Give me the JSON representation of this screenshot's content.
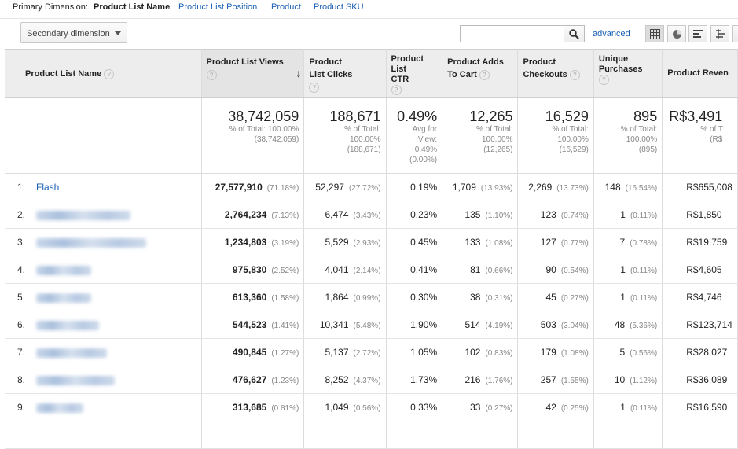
{
  "primary_dimension": {
    "label": "Primary Dimension:",
    "active": "Product List Name",
    "options": [
      "Product List Position",
      "Product",
      "Product SKU"
    ]
  },
  "controls": {
    "secondary_dimension": "Secondary dimension",
    "search_value": "",
    "advanced": "advanced"
  },
  "table": {
    "columns": [
      {
        "label": "Product List Name"
      },
      {
        "label": "Product List Views"
      },
      {
        "label": "Product List Clicks"
      },
      {
        "label": "Product List CTR"
      },
      {
        "label": "Product Adds To Cart"
      },
      {
        "label": "Product Checkouts"
      },
      {
        "label": "Unique Purchases"
      },
      {
        "label": "Product Reven"
      }
    ],
    "totals": [
      {
        "big": "38,742,059",
        "sub": [
          "% of Total: 100.00%",
          "(38,742,059)"
        ]
      },
      {
        "big": "188,671",
        "sub": [
          "% of Total:",
          "100.00%",
          "(188,671)"
        ]
      },
      {
        "big": "0.49%",
        "sub": [
          "Avg for",
          "View:",
          "0.49%",
          "(0.00%)"
        ]
      },
      {
        "big": "12,265",
        "sub": [
          "% of Total:",
          "100.00%",
          "(12,265)"
        ]
      },
      {
        "big": "16,529",
        "sub": [
          "% of Total:",
          "100.00%",
          "(16,529)"
        ]
      },
      {
        "big": "895",
        "sub": [
          "% of Total:",
          "100.00%",
          "(895)"
        ]
      },
      {
        "big": "R$3,491",
        "sub": [
          "% of T",
          "(R$"
        ]
      }
    ],
    "rows": [
      {
        "idx": "1.",
        "name": "Flash",
        "views": "27,577,910",
        "views_pct": "(71.18%)",
        "clicks": "52,297",
        "clicks_pct": "(27.72%)",
        "ctr": "0.19%",
        "adds": "1,709",
        "adds_pct": "(13.93%)",
        "checkouts": "2,269",
        "checkouts_pct": "(13.73%)",
        "purchases": "148",
        "purchases_pct": "(16.54%)",
        "revenue": "R$655,008"
      },
      {
        "idx": "2.",
        "name": "",
        "views": "2,764,234",
        "views_pct": "(7.13%)",
        "clicks": "6,474",
        "clicks_pct": "(3.43%)",
        "ctr": "0.23%",
        "adds": "135",
        "adds_pct": "(1.10%)",
        "checkouts": "123",
        "checkouts_pct": "(0.74%)",
        "purchases": "1",
        "purchases_pct": "(0.11%)",
        "revenue": "R$1,850"
      },
      {
        "idx": "3.",
        "name": "",
        "views": "1,234,803",
        "views_pct": "(3.19%)",
        "clicks": "5,529",
        "clicks_pct": "(2.93%)",
        "ctr": "0.45%",
        "adds": "133",
        "adds_pct": "(1.08%)",
        "checkouts": "127",
        "checkouts_pct": "(0.77%)",
        "purchases": "7",
        "purchases_pct": "(0.78%)",
        "revenue": "R$19,759"
      },
      {
        "idx": "4.",
        "name": "",
        "views": "975,830",
        "views_pct": "(2.52%)",
        "clicks": "4,041",
        "clicks_pct": "(2.14%)",
        "ctr": "0.41%",
        "adds": "81",
        "adds_pct": "(0.66%)",
        "checkouts": "90",
        "checkouts_pct": "(0.54%)",
        "purchases": "1",
        "purchases_pct": "(0.11%)",
        "revenue": "R$4,605"
      },
      {
        "idx": "5.",
        "name": "",
        "views": "613,360",
        "views_pct": "(1.58%)",
        "clicks": "1,864",
        "clicks_pct": "(0.99%)",
        "ctr": "0.30%",
        "adds": "38",
        "adds_pct": "(0.31%)",
        "checkouts": "45",
        "checkouts_pct": "(0.27%)",
        "purchases": "1",
        "purchases_pct": "(0.11%)",
        "revenue": "R$4,746"
      },
      {
        "idx": "6.",
        "name": "",
        "views": "544,523",
        "views_pct": "(1.41%)",
        "clicks": "10,341",
        "clicks_pct": "(5.48%)",
        "ctr": "1.90%",
        "adds": "514",
        "adds_pct": "(4.19%)",
        "checkouts": "503",
        "checkouts_pct": "(3.04%)",
        "purchases": "48",
        "purchases_pct": "(5.36%)",
        "revenue": "R$123,714"
      },
      {
        "idx": "7.",
        "name": "",
        "views": "490,845",
        "views_pct": "(1.27%)",
        "clicks": "5,137",
        "clicks_pct": "(2.72%)",
        "ctr": "1.05%",
        "adds": "102",
        "adds_pct": "(0.83%)",
        "checkouts": "179",
        "checkouts_pct": "(1.08%)",
        "purchases": "5",
        "purchases_pct": "(0.56%)",
        "revenue": "R$28,027"
      },
      {
        "idx": "8.",
        "name": "",
        "views": "476,627",
        "views_pct": "(1.23%)",
        "clicks": "8,252",
        "clicks_pct": "(4.37%)",
        "ctr": "1.73%",
        "adds": "216",
        "adds_pct": "(1.76%)",
        "checkouts": "257",
        "checkouts_pct": "(1.55%)",
        "purchases": "10",
        "purchases_pct": "(1.12%)",
        "revenue": "R$36,089"
      },
      {
        "idx": "9.",
        "name": "",
        "views": "313,685",
        "views_pct": "(0.81%)",
        "clicks": "1,049",
        "clicks_pct": "(0.56%)",
        "ctr": "0.33%",
        "adds": "33",
        "adds_pct": "(0.27%)",
        "checkouts": "42",
        "checkouts_pct": "(0.25%)",
        "purchases": "1",
        "purchases_pct": "(0.11%)",
        "revenue": "R$16,590"
      }
    ]
  },
  "colors": {
    "link": "#1a5fb4",
    "header_bg": "#ededed"
  }
}
